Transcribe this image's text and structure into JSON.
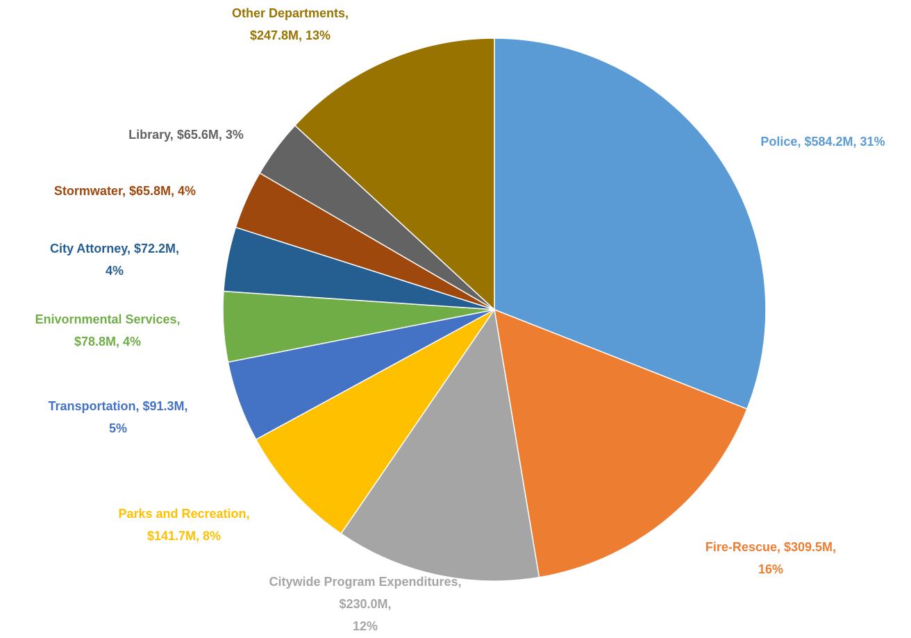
{
  "chart_data": {
    "type": "pie",
    "categories": [
      "Police",
      "Fire-Rescue",
      "Citywide Program Expenditures",
      "Parks and Recreation",
      "Transportation",
      "Enivornmental Services",
      "City Attorney",
      "Stormwater",
      "Library",
      "Other Departments"
    ],
    "values": [
      584.2,
      309.5,
      230.0,
      141.7,
      91.3,
      78.8,
      72.2,
      65.8,
      65.6,
      247.8
    ],
    "value_labels": [
      "$584.2M",
      "$309.5M",
      "$230.0M",
      "$141.7M",
      "$91.3M",
      "$78.8M",
      "$72.2M",
      "$65.8M",
      "$65.6M",
      "$247.8M"
    ],
    "percents": [
      31,
      16,
      12,
      8,
      5,
      4,
      4,
      4,
      3,
      13
    ],
    "percent_labels": [
      "31%",
      "16%",
      "12%",
      "8%",
      "5%",
      "4%",
      "4%",
      "4%",
      "3%",
      "13%"
    ],
    "colors": [
      "#5b9bd5",
      "#ed7d31",
      "#a5a5a5",
      "#ffc000",
      "#4472c4",
      "#70ad47",
      "#255e91",
      "#9e480e",
      "#636363",
      "#997300"
    ]
  }
}
